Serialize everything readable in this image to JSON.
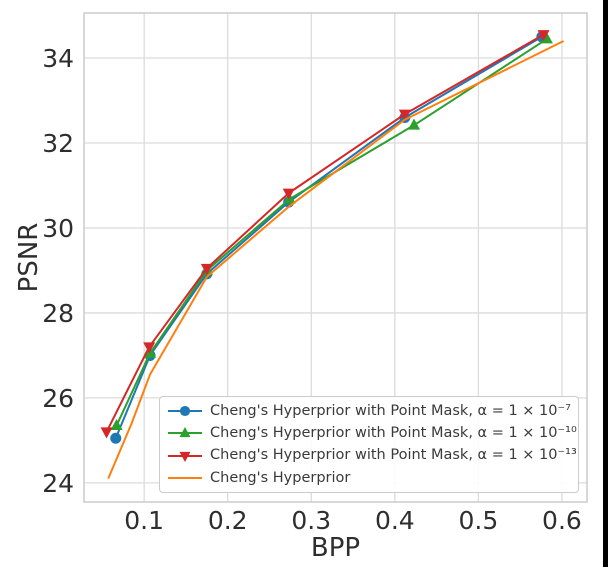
{
  "window": {
    "background_color": "#ffffff",
    "right_edge_color": "#000000"
  },
  "chart_data": {
    "type": "line",
    "title": "",
    "xlabel": "BPP",
    "ylabel": "PSNR",
    "xlim": [
      0.028,
      0.63
    ],
    "ylim": [
      23.55,
      35.06
    ],
    "grid": true,
    "grid_color": "#dcdcdc",
    "spine_color": "#cccccc",
    "tick_label_color": "#2e2e2e",
    "x_ticks": [
      0.1,
      0.2,
      0.3,
      0.4,
      0.5,
      0.6
    ],
    "x_tick_labels": [
      "0.1",
      "0.2",
      "0.3",
      "0.4",
      "0.5",
      "0.6"
    ],
    "y_ticks": [
      24,
      26,
      28,
      30,
      32,
      34
    ],
    "y_tick_labels": [
      "24",
      "26",
      "28",
      "30",
      "32",
      "34"
    ],
    "legend": {
      "position": "lower-center-right",
      "border_color": "#cccccc",
      "background": "rgba(255,255,255,0.9)",
      "text_color": "#3a3a3a"
    },
    "series": [
      {
        "key": "point-mask-alpha-1e-7",
        "label": "Cheng's Hyperprior with Point Mask, α = 1 × 10⁻⁷",
        "color": "#1f77b4",
        "marker": "circle",
        "points": [
          [
            0.066,
            25.05
          ],
          [
            0.107,
            27.0
          ],
          [
            0.175,
            28.92
          ],
          [
            0.273,
            30.61
          ],
          [
            0.412,
            32.6
          ],
          [
            0.576,
            34.5
          ]
        ]
      },
      {
        "key": "point-mask-alpha-1e-10",
        "label": "Cheng's Hyperprior with Point Mask, α = 1 × 10⁻¹⁰",
        "color": "#2ca02c",
        "marker": "triangle-up",
        "points": [
          [
            0.067,
            25.35
          ],
          [
            0.107,
            27.05
          ],
          [
            0.175,
            29.0
          ],
          [
            0.274,
            30.68
          ],
          [
            0.423,
            32.42
          ],
          [
            0.582,
            34.45
          ]
        ]
      },
      {
        "key": "point-mask-alpha-1e-13",
        "label": "Cheng's Hyperprior with Point Mask, α = 1 × 10⁻¹³",
        "color": "#d62728",
        "marker": "triangle-down",
        "points": [
          [
            0.055,
            25.2
          ],
          [
            0.106,
            27.2
          ],
          [
            0.175,
            29.05
          ],
          [
            0.273,
            30.82
          ],
          [
            0.412,
            32.68
          ],
          [
            0.578,
            34.55
          ]
        ]
      },
      {
        "key": "baseline",
        "label": "Cheng's Hyperprior",
        "color": "#ff7f0e",
        "marker": "none",
        "points": [
          [
            0.057,
            24.1
          ],
          [
            0.085,
            25.4
          ],
          [
            0.107,
            26.55
          ],
          [
            0.175,
            28.85
          ],
          [
            0.273,
            30.5
          ],
          [
            0.412,
            32.55
          ],
          [
            0.602,
            34.4
          ]
        ]
      }
    ]
  }
}
